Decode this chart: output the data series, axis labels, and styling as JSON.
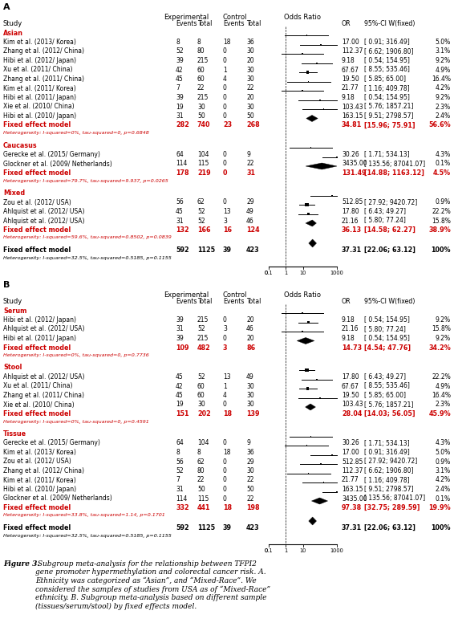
{
  "panel_A": {
    "title": "A",
    "subgroups": [
      {
        "name": "Asian",
        "studies": [
          {
            "label": "Kim et al. (2013/ Korea)",
            "exp_e": "8",
            "exp_t": "8",
            "ctrl_e": "18",
            "ctrl_t": "36",
            "or": 17.0,
            "ci_lo": 0.91,
            "ci_hi": 316.49,
            "weight": 5.0
          },
          {
            "label": "Zhang et al. (2012/ China)",
            "exp_e": "52",
            "exp_t": "80",
            "ctrl_e": "0",
            "ctrl_t": "30",
            "or": 112.37,
            "ci_lo": 6.62,
            "ci_hi": 1906.8,
            "weight": 3.1
          },
          {
            "label": "Hibi et al. (2012/ Japan)",
            "exp_e": "39",
            "exp_t": "215",
            "ctrl_e": "0",
            "ctrl_t": "20",
            "or": 9.18,
            "ci_lo": 0.54,
            "ci_hi": 154.95,
            "weight": 9.2
          },
          {
            "label": "Xu et al. (2011/ China)",
            "exp_e": "42",
            "exp_t": "60",
            "ctrl_e": "1",
            "ctrl_t": "30",
            "or": 67.67,
            "ci_lo": 8.55,
            "ci_hi": 535.46,
            "weight": 4.9
          },
          {
            "label": "Zhang et al. (2011/ China)",
            "exp_e": "45",
            "exp_t": "60",
            "ctrl_e": "4",
            "ctrl_t": "30",
            "or": 19.5,
            "ci_lo": 5.85,
            "ci_hi": 65.0,
            "weight": 16.4
          },
          {
            "label": "Kim et al. (2011/ Korea)",
            "exp_e": "7",
            "exp_t": "22",
            "ctrl_e": "0",
            "ctrl_t": "22",
            "or": 21.77,
            "ci_lo": 1.16,
            "ci_hi": 409.78,
            "weight": 4.2
          },
          {
            "label": "Hibi et al. (2011/ Japan)",
            "exp_e": "39",
            "exp_t": "215",
            "ctrl_e": "0",
            "ctrl_t": "20",
            "or": 9.18,
            "ci_lo": 0.54,
            "ci_hi": 154.95,
            "weight": 9.2
          },
          {
            "label": "Xie et al. (2010/ China)",
            "exp_e": "19",
            "exp_t": "30",
            "ctrl_e": "0",
            "ctrl_t": "30",
            "or": 103.43,
            "ci_lo": 5.76,
            "ci_hi": 1857.21,
            "weight": 2.3
          },
          {
            "label": "Hibi et al. (2010/ Japan)",
            "exp_e": "31",
            "exp_t": "50",
            "ctrl_e": "0",
            "ctrl_t": "50",
            "or": 163.15,
            "ci_lo": 9.51,
            "ci_hi": 2798.57,
            "weight": 2.4
          }
        ],
        "fixed_effect": {
          "exp_e": "282",
          "exp_t": "740",
          "ctrl_e": "23",
          "ctrl_t": "268",
          "or": 34.81,
          "ci_lo": 15.96,
          "ci_hi": 75.91,
          "weight_str": "56.6%"
        },
        "heterogeneity": "Heterogeneity: I-squared=0%, tau-squared=0, p=0.6848"
      },
      {
        "name": "Caucasus",
        "studies": [
          {
            "label": "Gerecke et al. (2015/ Germany)",
            "exp_e": "64",
            "exp_t": "104",
            "ctrl_e": "0",
            "ctrl_t": "9",
            "or": 30.26,
            "ci_lo": 1.71,
            "ci_hi": 534.13,
            "weight": 4.3
          },
          {
            "label": "Glockner et al. (2009/ Netherlands)",
            "exp_e": "114",
            "exp_t": "115",
            "ctrl_e": "0",
            "ctrl_t": "22",
            "or": 3435.0,
            "ci_lo": 135.56,
            "ci_hi": 87041.07,
            "weight": 0.1
          }
        ],
        "fixed_effect": {
          "exp_e": "178",
          "exp_t": "219",
          "ctrl_e": "0",
          "ctrl_t": "31",
          "or": 131.49,
          "ci_lo": 14.88,
          "ci_hi": 1163.12,
          "weight_str": "4.5%"
        },
        "heterogeneity": "Heterogeneity: I-squared=79.7%, tau-squared=9.937, p=0.0265"
      },
      {
        "name": "Mixed",
        "studies": [
          {
            "label": "Zou et al. (2012/ USA)",
            "exp_e": "56",
            "exp_t": "62",
            "ctrl_e": "0",
            "ctrl_t": "29",
            "or": 512.85,
            "ci_lo": 27.92,
            "ci_hi": 9420.72,
            "weight": 0.9
          },
          {
            "label": "Ahlquist et al. (2012/ USA)",
            "exp_e": "45",
            "exp_t": "52",
            "ctrl_e": "13",
            "ctrl_t": "49",
            "or": 17.8,
            "ci_lo": 6.43,
            "ci_hi": 49.27,
            "weight": 22.2
          },
          {
            "label": "Ahlquist et al. (2012/ USA)",
            "exp_e": "31",
            "exp_t": "52",
            "ctrl_e": "3",
            "ctrl_t": "46",
            "or": 21.16,
            "ci_lo": 5.8,
            "ci_hi": 77.24,
            "weight": 15.8
          }
        ],
        "fixed_effect": {
          "exp_e": "132",
          "exp_t": "166",
          "ctrl_e": "16",
          "ctrl_t": "124",
          "or": 36.13,
          "ci_lo": 14.58,
          "ci_hi": 62.27,
          "weight_str": "38.9%"
        },
        "heterogeneity": "Heterogeneity: I-squared=59.6%, tau-squared=0.8502, p=0.0839"
      }
    ],
    "overall": {
      "exp_e": "592",
      "exp_t": "1125",
      "ctrl_e": "39",
      "ctrl_t": "423",
      "or": 37.31,
      "ci_lo": 22.06,
      "ci_hi": 63.12,
      "weight_str": "100%"
    },
    "overall_heterogeneity": "Heterogeneity: I-squared=32.5%, tau-squared=0.5185, p=0.1155"
  },
  "panel_B": {
    "title": "B",
    "subgroups": [
      {
        "name": "Serum",
        "studies": [
          {
            "label": "Hibi et al. (2012/ Japan)",
            "exp_e": "39",
            "exp_t": "215",
            "ctrl_e": "0",
            "ctrl_t": "20",
            "or": 9.18,
            "ci_lo": 0.54,
            "ci_hi": 154.95,
            "weight": 9.2
          },
          {
            "label": "Ahlquist et al. (2012/ USA)",
            "exp_e": "31",
            "exp_t": "52",
            "ctrl_e": "3",
            "ctrl_t": "46",
            "or": 21.16,
            "ci_lo": 5.8,
            "ci_hi": 77.24,
            "weight": 15.8
          },
          {
            "label": "Hibi et al. (2011/ Japan)",
            "exp_e": "39",
            "exp_t": "215",
            "ctrl_e": "0",
            "ctrl_t": "20",
            "or": 9.18,
            "ci_lo": 0.54,
            "ci_hi": 154.95,
            "weight": 9.2
          }
        ],
        "fixed_effect": {
          "exp_e": "109",
          "exp_t": "482",
          "ctrl_e": "3",
          "ctrl_t": "86",
          "or": 14.73,
          "ci_lo": 4.54,
          "ci_hi": 47.76,
          "weight_str": "34.2%"
        },
        "heterogeneity": "Heterogeneity: I-squared=0%, tau-squared=0, p=0.7736"
      },
      {
        "name": "Stool",
        "studies": [
          {
            "label": "Ahlquist et al. (2012/ USA)",
            "exp_e": "45",
            "exp_t": "52",
            "ctrl_e": "13",
            "ctrl_t": "49",
            "or": 17.8,
            "ci_lo": 6.43,
            "ci_hi": 49.27,
            "weight": 22.2
          },
          {
            "label": "Xu et al. (2011/ China)",
            "exp_e": "42",
            "exp_t": "60",
            "ctrl_e": "1",
            "ctrl_t": "30",
            "or": 67.67,
            "ci_lo": 8.55,
            "ci_hi": 535.46,
            "weight": 4.9
          },
          {
            "label": "Zhang et al. (2011/ China)",
            "exp_e": "45",
            "exp_t": "60",
            "ctrl_e": "4",
            "ctrl_t": "30",
            "or": 19.5,
            "ci_lo": 5.85,
            "ci_hi": 65.0,
            "weight": 16.4
          },
          {
            "label": "Xie et al. (2010/ China)",
            "exp_e": "19",
            "exp_t": "30",
            "ctrl_e": "0",
            "ctrl_t": "30",
            "or": 103.43,
            "ci_lo": 5.76,
            "ci_hi": 1857.21,
            "weight": 2.3
          }
        ],
        "fixed_effect": {
          "exp_e": "151",
          "exp_t": "202",
          "ctrl_e": "18",
          "ctrl_t": "139",
          "or": 28.04,
          "ci_lo": 14.03,
          "ci_hi": 56.05,
          "weight_str": "45.9%"
        },
        "heterogeneity": "Heterogeneity: I-squared=0%, tau-squared=0, p=0.4591"
      },
      {
        "name": "Tissue",
        "studies": [
          {
            "label": "Gerecke et al. (2015/ Germany)",
            "exp_e": "64",
            "exp_t": "104",
            "ctrl_e": "0",
            "ctrl_t": "9",
            "or": 30.26,
            "ci_lo": 1.71,
            "ci_hi": 534.13,
            "weight": 4.3
          },
          {
            "label": "Kim et al. (2013/ Korea)",
            "exp_e": "8",
            "exp_t": "8",
            "ctrl_e": "18",
            "ctrl_t": "36",
            "or": 17.0,
            "ci_lo": 0.91,
            "ci_hi": 316.49,
            "weight": 5.0
          },
          {
            "label": "Zou et al. (2012/ USA)",
            "exp_e": "56",
            "exp_t": "62",
            "ctrl_e": "0",
            "ctrl_t": "29",
            "or": 512.85,
            "ci_lo": 27.92,
            "ci_hi": 9420.72,
            "weight": 0.9
          },
          {
            "label": "Zhang et al. (2012/ China)",
            "exp_e": "52",
            "exp_t": "80",
            "ctrl_e": "0",
            "ctrl_t": "30",
            "or": 112.37,
            "ci_lo": 6.62,
            "ci_hi": 1906.8,
            "weight": 3.1
          },
          {
            "label": "Kim et al. (2011/ Korea)",
            "exp_e": "7",
            "exp_t": "22",
            "ctrl_e": "0",
            "ctrl_t": "22",
            "or": 21.77,
            "ci_lo": 1.16,
            "ci_hi": 409.78,
            "weight": 4.2
          },
          {
            "label": "Hibi et al. (2010/ Japan)",
            "exp_e": "31",
            "exp_t": "50",
            "ctrl_e": "0",
            "ctrl_t": "50",
            "or": 163.15,
            "ci_lo": 9.51,
            "ci_hi": 2798.57,
            "weight": 2.4
          },
          {
            "label": "Glockner et al. (2009/ Netherlands)",
            "exp_e": "114",
            "exp_t": "115",
            "ctrl_e": "0",
            "ctrl_t": "22",
            "or": 3435.0,
            "ci_lo": 135.56,
            "ci_hi": 87041.07,
            "weight": 0.1
          }
        ],
        "fixed_effect": {
          "exp_e": "332",
          "exp_t": "441",
          "ctrl_e": "18",
          "ctrl_t": "198",
          "or": 97.38,
          "ci_lo": 32.75,
          "ci_hi": 289.59,
          "weight_str": "19.9%"
        },
        "heterogeneity": "Heterogeneity: I-squared=33.8%, tau-squared=1.14, p=0.1701"
      }
    ],
    "overall": {
      "exp_e": "592",
      "exp_t": "1125",
      "ctrl_e": "39",
      "ctrl_t": "423",
      "or": 37.31,
      "ci_lo": 22.06,
      "ci_hi": 63.12,
      "weight_str": "100%"
    },
    "overall_heterogeneity": "Heterogeneity: I-squared=32.5%, tau-squared=0.5185, p=0.1155"
  },
  "caption_bold": "Figure 3.",
  "caption_italic": " Subgroup meta-analysis for the relationship between TFPI2\ngene promoter hypermethylation and colorectal cancer risk. A.\nEthnicity was categorized as “Asian”, and “Mixed-Race”. We\nconsidered the samples of studies from USA as of “Mixed-Race”\nethnicity. B. Subgroup meta-analysis based on different sample\n(tissues/serum/stool) by fixed effects model.",
  "red": "#cc0000",
  "black": "#000000"
}
